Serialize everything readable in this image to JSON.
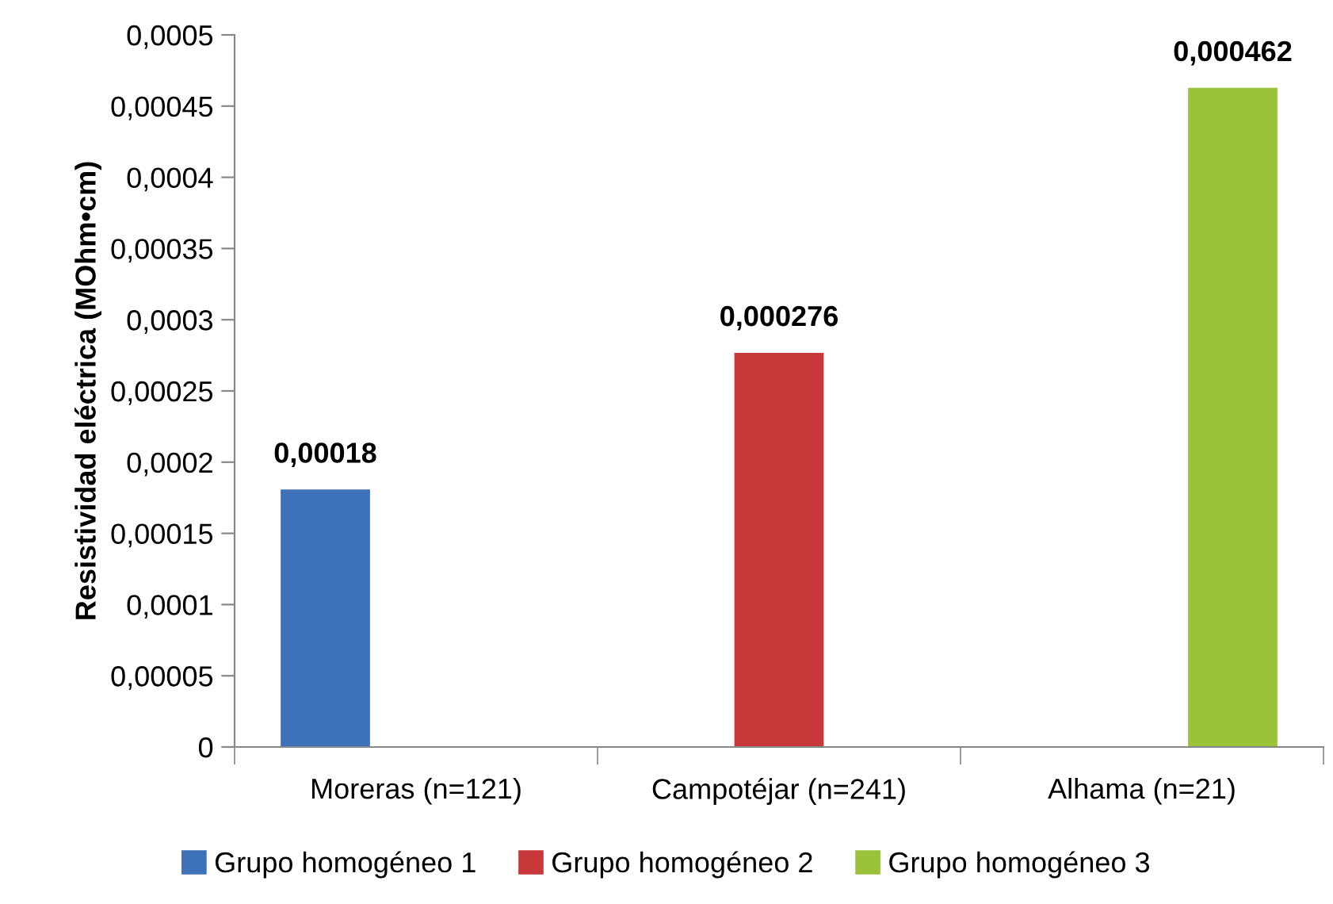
{
  "chart_data": {
    "type": "bar",
    "ylabel": "Resistividad eléctrica (MOhm•cm)",
    "categories": [
      "Moreras (n=121)",
      "Campotéjar (n=241)",
      "Alhama (n=21)"
    ],
    "series": [
      {
        "name": "Grupo homogéneo 1",
        "color": "#3d72b8",
        "values": [
          0.00018,
          null,
          null
        ],
        "value_labels": [
          "0,00018",
          null,
          null
        ]
      },
      {
        "name": "Grupo homogéneo 2",
        "color": "#c8383a",
        "values": [
          null,
          0.000276,
          null
        ],
        "value_labels": [
          null,
          "0,000276",
          null
        ]
      },
      {
        "name": "Grupo homogéneo 3",
        "color": "#9bc33a",
        "values": [
          null,
          null,
          0.000462
        ],
        "value_labels": [
          null,
          null,
          "0,000462"
        ]
      }
    ],
    "ylim": [
      0,
      0.0005
    ],
    "yticks": [
      {
        "value": 0,
        "label": "0"
      },
      {
        "value": 5e-05,
        "label": "0,00005"
      },
      {
        "value": 0.0001,
        "label": "0,0001"
      },
      {
        "value": 0.00015,
        "label": "0,00015"
      },
      {
        "value": 0.0002,
        "label": "0,0002"
      },
      {
        "value": 0.00025,
        "label": "0,00025"
      },
      {
        "value": 0.0003,
        "label": "0,0003"
      },
      {
        "value": 0.00035,
        "label": "0,00035"
      },
      {
        "value": 0.0004,
        "label": "0,0004"
      },
      {
        "value": 0.00045,
        "label": "0,00045"
      },
      {
        "value": 0.0005,
        "label": "0,0005"
      }
    ],
    "grid": false,
    "legend": "bottom"
  }
}
